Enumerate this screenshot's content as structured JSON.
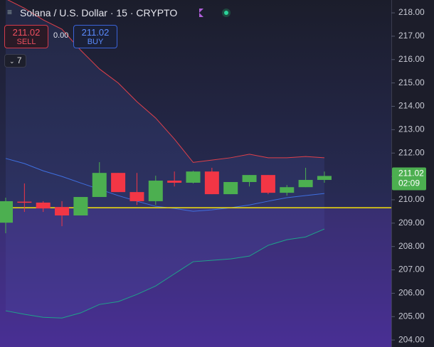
{
  "header": {
    "title": "Solana / U.S. Dollar · 15 · CRYPTO",
    "sell_price": "211.02",
    "sell_label": "SELL",
    "spread": "0.00",
    "buy_price": "211.02",
    "buy_label": "BUY",
    "indicator_count": "7"
  },
  "chart_data": {
    "type": "candlestick",
    "categories": [
      null,
      null,
      null,
      null,
      null,
      null,
      null,
      null,
      null,
      null,
      null,
      null,
      null,
      null,
      null,
      null,
      null,
      null
    ],
    "open": [
      209.02,
      209.92,
      209.88,
      209.69,
      209.33,
      210.12,
      211.15,
      210.33,
      209.94,
      210.82,
      210.73,
      211.21,
      210.24,
      210.76,
      211.06,
      210.3,
      210.54,
      210.85
    ],
    "high": [
      210.09,
      210.7,
      209.94,
      209.94,
      210.12,
      211.61,
      211.15,
      211.15,
      211.03,
      211.21,
      211.24,
      211.37,
      210.76,
      211.06,
      211.06,
      210.63,
      211.37,
      211.21
    ],
    "low": [
      208.57,
      209.48,
      209.48,
      208.87,
      209.33,
      210.12,
      210.33,
      209.78,
      209.78,
      210.57,
      210.7,
      210.24,
      210.24,
      210.57,
      210.24,
      210.18,
      210.54,
      210.73
    ],
    "close": [
      209.94,
      209.9,
      209.63,
      209.33,
      210.12,
      211.15,
      210.33,
      209.94,
      210.82,
      210.73,
      211.21,
      210.24,
      210.76,
      211.06,
      210.3,
      210.54,
      210.85,
      211.02
    ],
    "up_color": "#4caf50",
    "down_color": "#f23645",
    "bands": {
      "upper": [
        218.6,
        218.2,
        217.7,
        217.3,
        216.4,
        215.6,
        215.0,
        214.2,
        213.5,
        212.6,
        211.6,
        211.7,
        211.8,
        211.95,
        211.8,
        211.8,
        211.85,
        211.8
      ],
      "middle": [
        211.77,
        211.55,
        211.24,
        211.0,
        210.72,
        210.45,
        210.18,
        209.94,
        209.72,
        209.63,
        209.51,
        209.57,
        209.66,
        209.78,
        209.94,
        210.09,
        210.18,
        210.27
      ],
      "lower": [
        205.25,
        205.1,
        204.97,
        204.94,
        205.16,
        205.52,
        205.64,
        205.95,
        206.31,
        206.83,
        207.35,
        207.41,
        207.47,
        207.59,
        208.05,
        208.29,
        208.41,
        208.75
      ],
      "upper_color": "#e0404a",
      "middle_color": "#3f6fe0",
      "lower_color": "#1fa38a",
      "fill": "rgba(70,90,170,0.18)"
    },
    "price_line": 209.66,
    "price_line_color": "#f5e10a",
    "last_price": 211.02,
    "countdown": "02:09",
    "ylim": [
      203.7,
      218.55
    ],
    "yticks": [
      {
        "value": 204,
        "label": "204.00"
      },
      {
        "value": 205,
        "label": "205.00"
      },
      {
        "value": 206,
        "label": "206.00"
      },
      {
        "value": 207,
        "label": "207.00"
      },
      {
        "value": 208,
        "label": "208.00"
      },
      {
        "value": 209,
        "label": "209.00"
      },
      {
        "value": 210,
        "label": "210.00"
      },
      {
        "value": 211,
        "label": "211.00"
      },
      {
        "value": 212,
        "label": "212.00"
      },
      {
        "value": 213,
        "label": "213.00"
      },
      {
        "value": 214,
        "label": "214.00"
      },
      {
        "value": 215,
        "label": "215.00"
      },
      {
        "value": 216,
        "label": "216.00"
      },
      {
        "value": 217,
        "label": "217.00"
      },
      {
        "value": 218,
        "label": "218.00"
      }
    ]
  }
}
